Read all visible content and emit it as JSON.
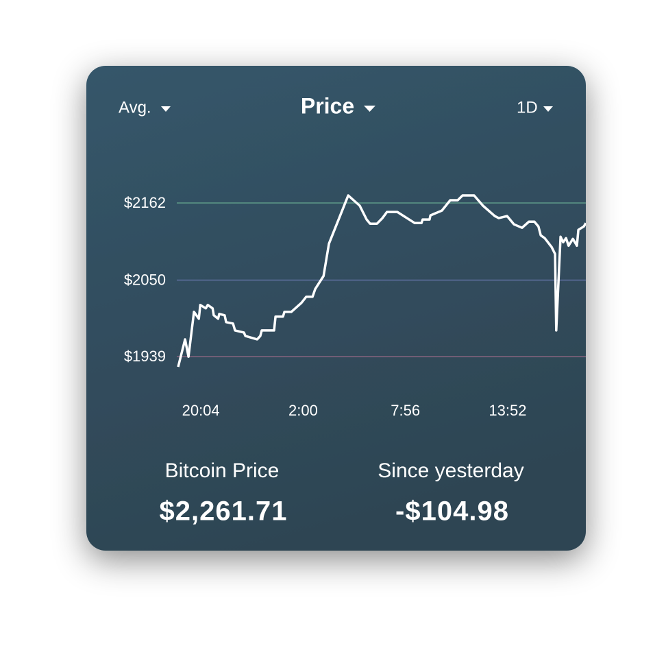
{
  "controls": {
    "left": "Avg.",
    "center": "Price",
    "right": "1D"
  },
  "chart_data": {
    "type": "line",
    "color": "#ffffff",
    "x": [
      "18:45",
      "19:09",
      "19:21",
      "19:40",
      "19:57",
      "20:02",
      "20:21",
      "20:28",
      "20:45",
      "20:49",
      "21:04",
      "21:08",
      "21:27",
      "21:32",
      "21:56",
      "22:03",
      "22:34",
      "22:39",
      "23:20",
      "23:31",
      "23:36",
      "0:19",
      "0:24",
      "0:50",
      "0:55",
      "1:19",
      "1:54",
      "2:11",
      "2:33",
      "2:42",
      "3:11",
      "3:30",
      "4:37",
      "5:17",
      "5:41",
      "5:53",
      "6:17",
      "6:36",
      "6:52",
      "7:28",
      "8:28",
      "8:52",
      "8:56",
      "9:20",
      "9:23",
      "10:03",
      "10:32",
      "10:58",
      "11:15",
      "11:55",
      "12:26",
      "13:07",
      "13:21",
      "13:50",
      "14:14",
      "14:42",
      "15:06",
      "15:25",
      "15:39",
      "15:47",
      "16:01",
      "16:25",
      "16:37",
      "16:41",
      "16:56",
      "17:05",
      "17:15",
      "17:24",
      "17:39",
      "17:53",
      "17:58",
      "18:17",
      "18:24"
    ],
    "values": [
      1924,
      1964,
      1939,
      2004,
      1994,
      2014,
      2009,
      2014,
      2009,
      1999,
      1994,
      2001,
      1999,
      1989,
      1987,
      1977,
      1974,
      1969,
      1964,
      1969,
      1977,
      1977,
      1997,
      1997,
      2004,
      2004,
      2017,
      2026,
      2026,
      2037,
      2056,
      2103,
      2173,
      2158,
      2138,
      2132,
      2132,
      2140,
      2149,
      2149,
      2133,
      2133,
      2138,
      2138,
      2144,
      2151,
      2166,
      2166,
      2173,
      2173,
      2158,
      2143,
      2140,
      2143,
      2131,
      2126,
      2135,
      2135,
      2128,
      2115,
      2111,
      2098,
      2088,
      1977,
      2113,
      2105,
      2111,
      2100,
      2110,
      2100,
      2123,
      2128,
      2133
    ],
    "xlim": [
      "18:45",
      "18:24"
    ],
    "xticks": [
      "20:04",
      "2:00",
      "7:56",
      "13:52"
    ],
    "ylim": [
      1910,
      2210
    ],
    "yticks": [
      {
        "value": 1939,
        "label": "$1939"
      },
      {
        "value": 2050,
        "label": "$2050"
      },
      {
        "value": 2162,
        "label": "$2162"
      }
    ],
    "grid": true,
    "grid_colors": [
      "#8a6580",
      "#5f70a0",
      "#5c9a88"
    ]
  },
  "stats": [
    {
      "label": "Bitcoin Price",
      "value": "$2,261.71"
    },
    {
      "label": "Since yesterday",
      "value": "-$104.98"
    }
  ]
}
